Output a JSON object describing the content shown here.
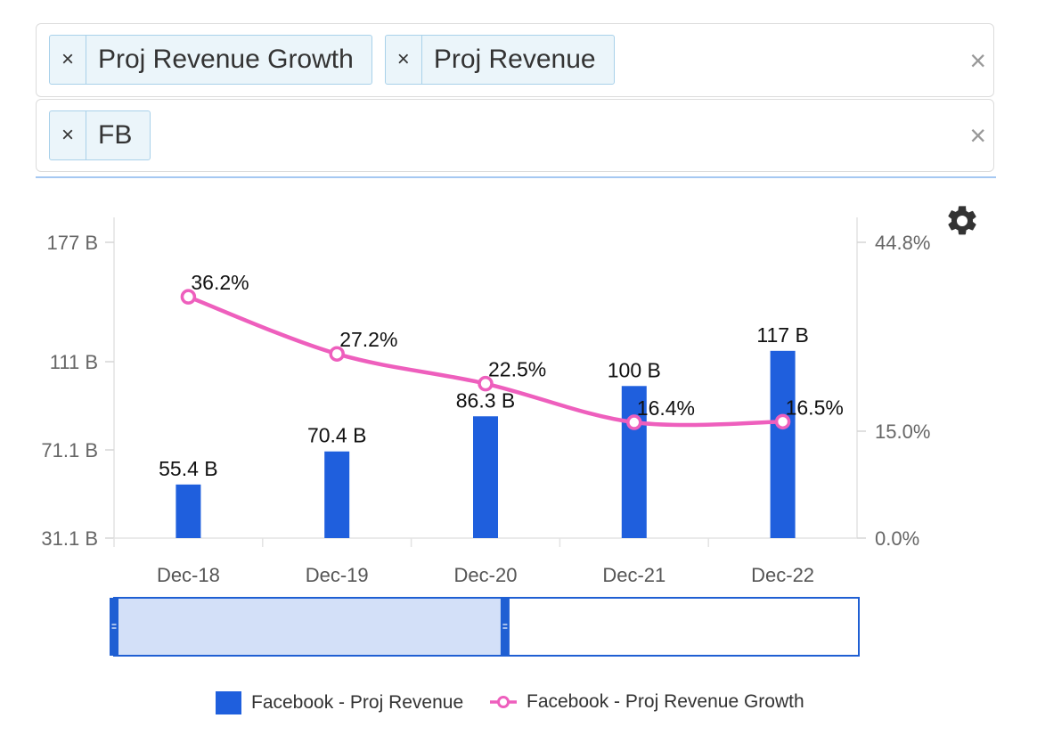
{
  "filters": {
    "metrics": [
      {
        "label": "Proj Revenue Growth"
      },
      {
        "label": "Proj Revenue"
      }
    ],
    "tickers": [
      {
        "label": "FB"
      }
    ],
    "remove_glyph": "×",
    "clear_glyph": "×"
  },
  "settings": {
    "icon": "gear-icon"
  },
  "chart_data": {
    "type": "bar+line",
    "categories": [
      "Dec-18",
      "Dec-19",
      "Dec-20",
      "Dec-21",
      "Dec-22"
    ],
    "series": [
      {
        "name": "Facebook - Proj Revenue",
        "type": "bar",
        "axis": "left",
        "color": "#1f5fdd",
        "values": [
          55.4,
          70.4,
          86.3,
          100,
          117
        ],
        "labels": [
          "55.4 B",
          "70.4 B",
          "86.3 B",
          "100 B",
          "117 B"
        ]
      },
      {
        "name": "Facebook - Proj Revenue Growth",
        "type": "line",
        "axis": "right",
        "color": "#ee5fbd",
        "values": [
          36.2,
          27.2,
          22.5,
          16.4,
          16.5
        ],
        "labels": [
          "36.2%",
          "27.2%",
          "22.5%",
          "16.4%",
          "16.5%"
        ]
      }
    ],
    "left_axis": {
      "ticks": [
        31.1,
        71.1,
        111,
        177
      ],
      "tick_labels": [
        "31.1 B",
        "71.1 B",
        "111 B",
        "177 B"
      ]
    },
    "right_axis": {
      "ticks": [
        0.0,
        15.0,
        44.8
      ],
      "tick_labels": [
        "0.0%",
        "15.0%",
        "44.8%"
      ]
    },
    "navigator": {
      "start_fraction": 0.0,
      "end_fraction": 0.525
    },
    "legend_position": "bottom",
    "grid": false
  }
}
